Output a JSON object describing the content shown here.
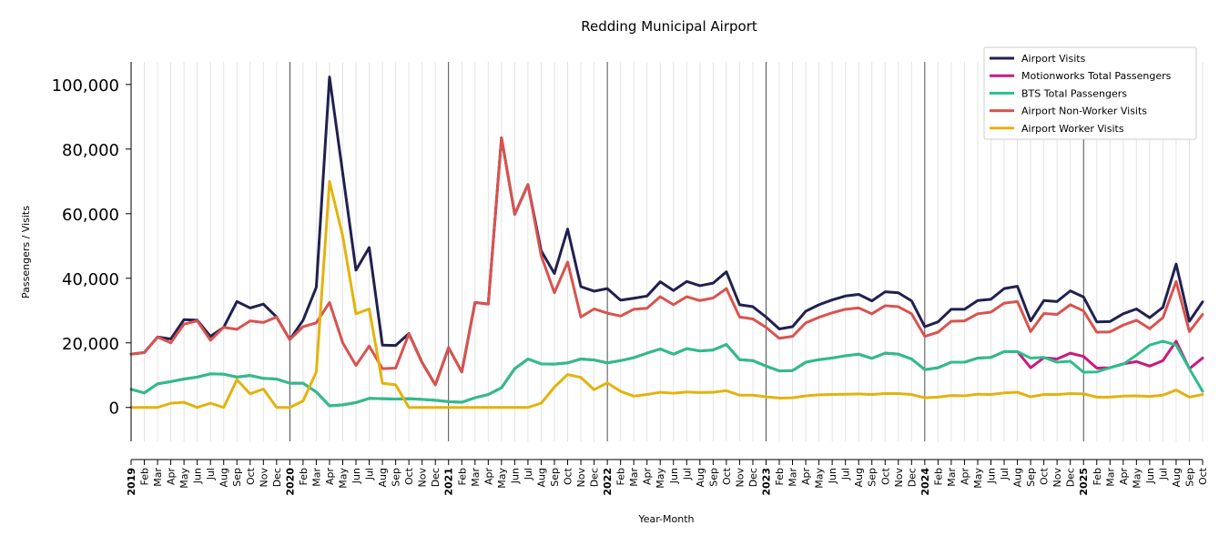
{
  "chart_data": {
    "type": "line",
    "title": "Redding Municipal Airport",
    "xlabel": "Year-Month",
    "ylabel": "Passengers / Visits",
    "ylim": [
      -10500,
      107000
    ],
    "yticks": [
      0,
      20000,
      40000,
      60000,
      80000,
      100000
    ],
    "ytick_labels": [
      "0",
      "20,000",
      "40,000",
      "60,000",
      "80,000",
      "100,000"
    ],
    "grid": "vertical monthly gridlines, darker lines at year starts",
    "legend_position": "top-right",
    "month_labels": [
      "",
      "Feb",
      "Mar",
      "Apr",
      "May",
      "Jun",
      "Jul",
      "Aug",
      "Sep",
      "Oct",
      "Nov",
      "Dec"
    ],
    "years": [
      "2019",
      "2020",
      "2021",
      "2022",
      "2023",
      "2024",
      "2025"
    ],
    "start": "2019-01",
    "end": "2025-10",
    "series": [
      {
        "name": "Airport Visits",
        "color": "#20214f",
        "values": [
          16500,
          17000,
          21800,
          21200,
          27200,
          27000,
          22000,
          24800,
          32800,
          30800,
          32000,
          28000,
          21000,
          27000,
          37200,
          102300,
          72500,
          42500,
          49500,
          19300,
          19200,
          22900,
          13900,
          7000,
          18500,
          11000,
          32500,
          32000,
          83500,
          59800,
          69000,
          48500,
          41500,
          55200,
          37400,
          36000,
          36800,
          33200,
          33800,
          34500,
          38900,
          36200,
          39000,
          37700,
          38500,
          42000,
          31800,
          31200,
          28000,
          24300,
          25000,
          29800,
          31800,
          33300,
          34500,
          35000,
          33000,
          35800,
          35500,
          33000,
          25000,
          26500,
          30400,
          30400,
          33100,
          33500,
          36800,
          37500,
          26800,
          33100,
          32800,
          36100,
          34200,
          26500,
          26600,
          29000,
          30500,
          27800,
          31000,
          44400,
          26700,
          32700
        ]
      },
      {
        "name": "Motionworks Total Passengers",
        "color": "#c91a7d",
        "values": [
          5600,
          4500,
          7300,
          8000,
          8800,
          9400,
          10400,
          10300,
          9400,
          9900,
          9000,
          8800,
          7500,
          7500,
          4800,
          500,
          800,
          1500,
          2800,
          2700,
          2600,
          2700,
          2500,
          2200,
          1800,
          1600,
          3000,
          4000,
          6100,
          12000,
          15000,
          13500,
          13400,
          13800,
          15000,
          14700,
          13800,
          14500,
          15400,
          16800,
          18100,
          16500,
          18200,
          17500,
          17800,
          19500,
          14800,
          14500,
          12800,
          11300,
          11400,
          14000,
          14800,
          15300,
          16000,
          16500,
          15200,
          16800,
          16500,
          15000,
          11700,
          12300,
          14000,
          14000,
          15300,
          15500,
          17300,
          17300,
          12300,
          15400,
          15000,
          16800,
          15800,
          12200,
          12300,
          13500,
          14200,
          12800,
          14500,
          20500,
          12000,
          15300
        ]
      },
      {
        "name": "BTS Total Passengers",
        "color": "#2bbf8c",
        "values": [
          5600,
          4500,
          7300,
          8000,
          8800,
          9400,
          10400,
          10300,
          9400,
          9900,
          9000,
          8800,
          7500,
          7500,
          4800,
          500,
          800,
          1500,
          2800,
          2700,
          2600,
          2700,
          2500,
          2200,
          1800,
          1600,
          3000,
          4000,
          6100,
          12000,
          15000,
          13500,
          13400,
          13800,
          15000,
          14700,
          13800,
          14500,
          15400,
          16800,
          18100,
          16500,
          18200,
          17500,
          17800,
          19500,
          14800,
          14500,
          12800,
          11300,
          11400,
          14000,
          14800,
          15300,
          16000,
          16500,
          15200,
          16800,
          16500,
          15000,
          11700,
          12300,
          14000,
          14000,
          15300,
          15500,
          17300,
          17300,
          15300,
          15500,
          14000,
          14300,
          10900,
          11000,
          12300,
          13400,
          16200,
          19300,
          20500,
          19300,
          12000,
          5000
        ]
      },
      {
        "name": "Airport Non-Worker Visits",
        "color": "#d9534f",
        "values": [
          16500,
          17000,
          21800,
          20000,
          25800,
          26800,
          20800,
          24800,
          24200,
          26800,
          26300,
          28000,
          21000,
          25000,
          26200,
          32500,
          20000,
          13000,
          19000,
          12000,
          12200,
          22800,
          13800,
          7000,
          18500,
          11000,
          32500,
          32000,
          83500,
          59800,
          69000,
          47000,
          35500,
          45000,
          28000,
          30500,
          29200,
          28300,
          30400,
          30700,
          34300,
          31800,
          34300,
          33100,
          33900,
          36800,
          28000,
          27400,
          24800,
          21400,
          22000,
          26200,
          27900,
          29300,
          30400,
          30800,
          29000,
          31500,
          31200,
          29000,
          22000,
          23300,
          26700,
          26800,
          29000,
          29500,
          32300,
          32800,
          23500,
          29100,
          28800,
          31800,
          29900,
          23300,
          23400,
          25500,
          27000,
          24400,
          27800,
          39000,
          23500,
          28800
        ]
      },
      {
        "name": "Airport Worker Visits",
        "color": "#e3b30e",
        "values": [
          0,
          0,
          0,
          1300,
          1600,
          0,
          1300,
          0,
          8600,
          4200,
          5700,
          0,
          0,
          2000,
          11000,
          70000,
          53000,
          29000,
          30500,
          7500,
          7000,
          0,
          0,
          0,
          0,
          0,
          0,
          0,
          0,
          0,
          0,
          1300,
          6300,
          10200,
          9300,
          5500,
          7600,
          5000,
          3500,
          4000,
          4700,
          4400,
          4800,
          4600,
          4700,
          5200,
          3800,
          3800,
          3300,
          2900,
          3000,
          3600,
          3900,
          4000,
          4100,
          4200,
          4000,
          4300,
          4300,
          4000,
          3000,
          3200,
          3700,
          3600,
          4100,
          4000,
          4500,
          4700,
          3300,
          4000,
          4000,
          4300,
          4200,
          3200,
          3200,
          3500,
          3600,
          3400,
          3800,
          5400,
          3200,
          4000
        ]
      }
    ]
  }
}
